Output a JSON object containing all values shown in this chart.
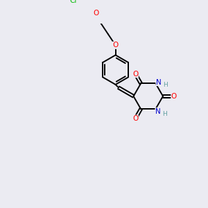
{
  "background_color": "#ebebf2",
  "bond_color": "#000000",
  "atom_colors": {
    "O": "#ff0000",
    "N": "#0000cd",
    "Cl": "#00bb00",
    "H": "#5f9ea0",
    "C": "#000000"
  },
  "figsize": [
    3.0,
    3.0
  ],
  "dpi": 100
}
